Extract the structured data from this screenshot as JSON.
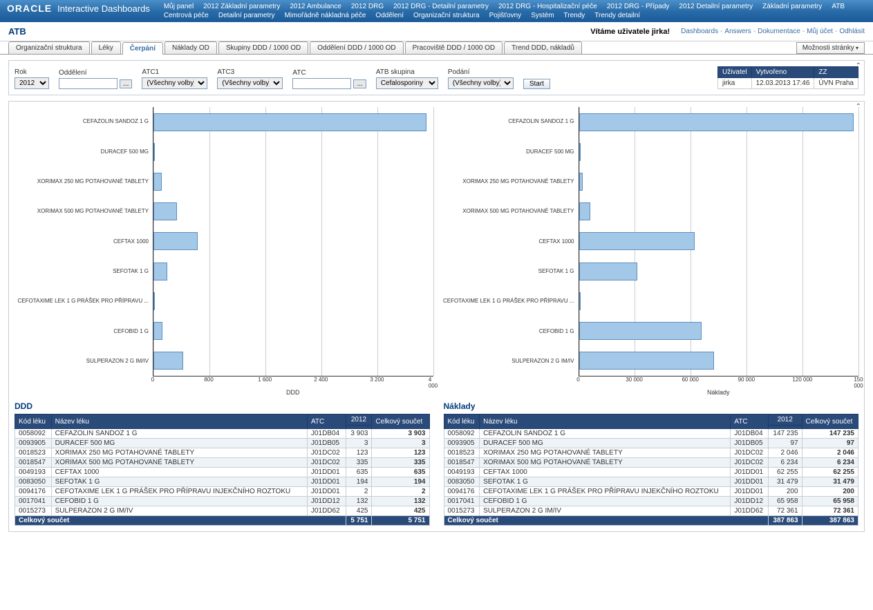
{
  "header": {
    "brand": "ORACLE",
    "brand_sub": "Interactive Dashboards",
    "nav": [
      "Můj panel",
      "2012 Základní parametry",
      "2012 Ambulance",
      "2012 DRG",
      "2012 DRG - Detailní parametry",
      "2012 DRG - Hospitalizační péče",
      "2012 DRG - Případy",
      "2012 Detailní parametry",
      "Základní parametry",
      "ATB",
      "Centrová péče",
      "Detailní parametry",
      "Mimořádně nákladná péče",
      "Oddělení",
      "Organizační struktura",
      "Pojišťovny",
      "Systém",
      "Trendy",
      "Trendy detailní"
    ]
  },
  "subheader": {
    "title": "ATB",
    "welcome": "Vítáme uživatele jirka!",
    "links": [
      "Dashboards",
      "Answers",
      "Dokumentace",
      "Můj účet",
      "Odhlásit"
    ]
  },
  "tabs": [
    "Organizační struktura",
    "Léky",
    "Čerpání",
    "Náklady OD",
    "Skupiny DDD / 1000 OD",
    "Oddělení DDD / 1000 OD",
    "Pracoviště DDD / 1000 OD",
    "Trend DDD, nákladů"
  ],
  "active_tab": 2,
  "page_options": "Možnosti stránky",
  "filters": {
    "rok": {
      "label": "Rok",
      "value": "2012"
    },
    "oddeleni": {
      "label": "Oddělení",
      "value": ""
    },
    "atc1": {
      "label": "ATC1",
      "value": "(Všechny volby)"
    },
    "atc3": {
      "label": "ATC3",
      "value": "(Všechny volby)"
    },
    "atc": {
      "label": "ATC",
      "value": ""
    },
    "atb_skupina": {
      "label": "ATB skupina",
      "value": "Cefalosporiny"
    },
    "podani": {
      "label": "Podání",
      "value": "(Všechny volby)"
    },
    "start": "Start"
  },
  "info": {
    "headers": [
      "Uživatel",
      "Vytvořeno",
      "ZZ"
    ],
    "values": [
      "jirka",
      "12.03.2013 17:46",
      "ÚVN Praha"
    ]
  },
  "drugs": [
    {
      "code": "0058092",
      "name": "CEFAZOLIN SANDOZ 1 G",
      "atc": "J01DB04",
      "ddd": 3903,
      "naklady": 147235
    },
    {
      "code": "0093905",
      "name": "DURACEF 500 MG",
      "atc": "J01DB05",
      "ddd": 3,
      "naklady": 97
    },
    {
      "code": "0018523",
      "name": "XORIMAX 250 MG POTAHOVANÉ TABLETY",
      "atc": "J01DC02",
      "ddd": 123,
      "naklady": 2046
    },
    {
      "code": "0018547",
      "name": "XORIMAX 500 MG POTAHOVANÉ TABLETY",
      "atc": "J01DC02",
      "ddd": 335,
      "naklady": 6234
    },
    {
      "code": "0049193",
      "name": "CEFTAX 1000",
      "atc": "J01DD01",
      "ddd": 635,
      "naklady": 62255
    },
    {
      "code": "0083050",
      "name": "SEFOTAK 1 G",
      "atc": "J01DD01",
      "ddd": 194,
      "naklady": 31479
    },
    {
      "code": "0094176",
      "name": "CEFOTAXIME LEK 1 G PRÁŠEK PRO PŘÍPRAVU INJEKČNÍHO ROZTOKU",
      "atc": "J01DD01",
      "ddd": 2,
      "naklady": 200
    },
    {
      "code": "0017041",
      "name": "CEFOBID 1 G",
      "atc": "J01DD12",
      "ddd": 132,
      "naklady": 65958
    },
    {
      "code": "0015273",
      "name": "SULPERAZON 2 G IM/IV",
      "atc": "J01DD62",
      "ddd": 425,
      "naklady": 72361
    }
  ],
  "chart_labels": [
    "CEFAZOLIN SANDOZ 1 G",
    "DURACEF 500 MG",
    "XORIMAX 250 MG POTAHOVANÉ TABLETY",
    "XORIMAX 500 MG POTAHOVANÉ TABLETY",
    "CEFTAX 1000",
    "SEFOTAK 1 G",
    "CEFOTAXIME LEK 1 G PRÁŠEK PRO PŘÍPRAVU ...",
    "CEFOBID 1 G",
    "SULPERAZON 2 G IM/IV"
  ],
  "chart1": {
    "title": "DDD",
    "xmax": 4000,
    "ticks": [
      0,
      800,
      1600,
      2400,
      3200,
      4000
    ],
    "tick_labels": [
      "0",
      "800",
      "1 600",
      "2 400",
      "3 200",
      "4 000"
    ],
    "values": [
      3903,
      3,
      123,
      335,
      635,
      194,
      2,
      132,
      425
    ],
    "bar_color": "#a4c8e8",
    "bar_border": "#5a8ec0",
    "grid_color": "#cccccc"
  },
  "chart2": {
    "title": "Náklady",
    "xmax": 150000,
    "ticks": [
      0,
      30000,
      60000,
      90000,
      120000,
      150000
    ],
    "tick_labels": [
      "0",
      "30 000",
      "60 000",
      "90 000",
      "120 000",
      "150 000"
    ],
    "values": [
      147235,
      97,
      2046,
      6234,
      62255,
      31479,
      200,
      65958,
      72361
    ],
    "bar_color": "#a4c8e8",
    "bar_border": "#5a8ec0",
    "grid_color": "#cccccc"
  },
  "table_section": {
    "ddd_title": "DDD",
    "naklady_title": "Náklady",
    "year": "2012",
    "cols": {
      "kod": "Kód léku",
      "nazev": "Název léku",
      "atc": "ATC",
      "total": "Celkový součet"
    },
    "total_label": "Celkový součet",
    "ddd_total": "5 751",
    "naklady_total": "387 863"
  }
}
